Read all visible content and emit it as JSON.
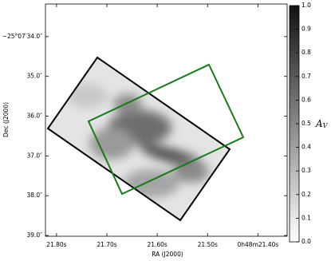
{
  "chart_data": {
    "type": "image",
    "xlabel": "RA (J2000)",
    "ylabel": "Dec (J2000)",
    "xlim": [
      21.822,
      21.342
    ],
    "xticks": [
      {
        "value": 21.8,
        "label": "21.80s"
      },
      {
        "value": 21.7,
        "label": "21.70s"
      },
      {
        "value": 21.6,
        "label": "21.60s"
      },
      {
        "value": 21.5,
        "label": "21.50s"
      },
      {
        "value": 21.4,
        "label": "0h48m21.40s"
      }
    ],
    "ylim": [
      39.02,
      33.18
    ],
    "yticks": [
      {
        "value": 34,
        "label": "−25°07′34.0″"
      },
      {
        "value": 35,
        "label": "35.0″"
      },
      {
        "value": 36,
        "label": "36.0″"
      },
      {
        "value": 37,
        "label": "37.0″"
      },
      {
        "value": 38,
        "label": "38.0″"
      },
      {
        "value": 39,
        "label": "39.0″"
      }
    ],
    "colorbar": {
      "label": "A",
      "label_subscript": "V",
      "lim": [
        0,
        1
      ],
      "ticks": [
        {
          "value": 0,
          "label": "0.0"
        },
        {
          "value": 0.1,
          "label": "0.1"
        },
        {
          "value": 0.2,
          "label": "0.2"
        },
        {
          "value": 0.3,
          "label": "0.3"
        },
        {
          "value": 0.4,
          "label": "0.4"
        },
        {
          "value": 0.5,
          "label": "0.5"
        },
        {
          "value": 0.6,
          "label": "0.6"
        },
        {
          "value": 0.7,
          "label": "0.7"
        },
        {
          "value": 0.8,
          "label": "0.8"
        },
        {
          "value": 0.9,
          "label": "0.9"
        },
        {
          "value": 1,
          "label": "1.0"
        }
      ]
    }
  }
}
